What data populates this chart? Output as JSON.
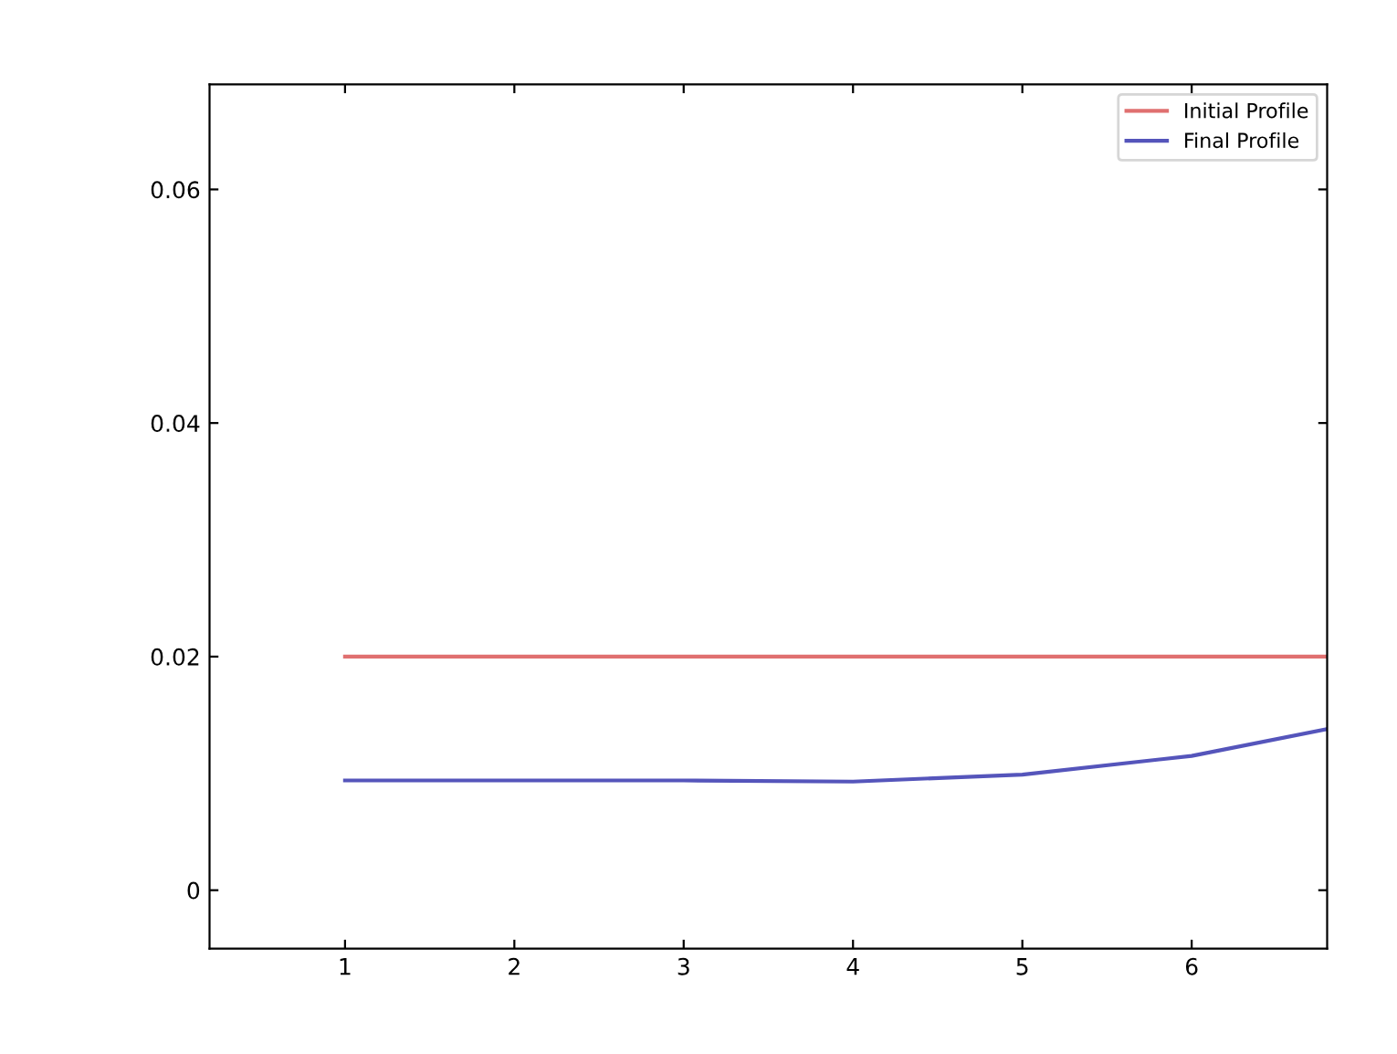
{
  "chart_data": {
    "type": "line",
    "x": [
      1,
      2,
      3,
      4,
      5,
      6,
      6.8
    ],
    "series": [
      {
        "name": "Initial Profile",
        "color": "#e07070",
        "values": [
          0.02,
          0.02,
          0.02,
          0.02,
          0.02,
          0.02,
          0.02
        ]
      },
      {
        "name": "Final Profile",
        "color": "#5555bb",
        "values": [
          0.0094,
          0.0094,
          0.0094,
          0.0093,
          0.0099,
          0.0115,
          0.0138
        ]
      }
    ],
    "xlim": [
      0.2,
      6.8
    ],
    "ylim": [
      -0.005,
      0.069
    ],
    "xticks": [
      1,
      2,
      3,
      4,
      5,
      6
    ],
    "yticks": [
      0,
      0.02,
      0.04,
      0.06
    ],
    "grid": false,
    "legend": "top right",
    "line_style": "solid",
    "marker": "none"
  }
}
